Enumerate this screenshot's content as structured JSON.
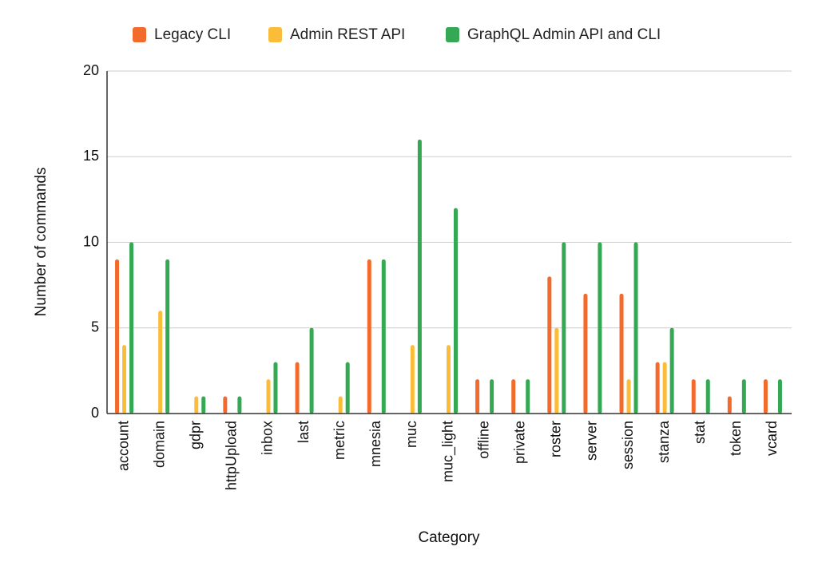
{
  "chart_data": {
    "type": "bar",
    "title": "",
    "xlabel": "Category",
    "ylabel": "Number of commands",
    "ylim": [
      0,
      20
    ],
    "yticks": [
      0,
      5,
      10,
      15,
      20
    ],
    "grid": true,
    "legend_position": "top",
    "categories": [
      "account",
      "domain",
      "gdpr",
      "httpUpload",
      "inbox",
      "last",
      "metric",
      "mnesia",
      "muc",
      "muc_light",
      "offline",
      "private",
      "roster",
      "server",
      "session",
      "stanza",
      "stat",
      "token",
      "vcard"
    ],
    "series": [
      {
        "name": "Legacy CLI",
        "color": "#f26b2c",
        "values": [
          9,
          0,
          0,
          1,
          0,
          3,
          0,
          9,
          0,
          0,
          2,
          2,
          8,
          7,
          7,
          3,
          2,
          1,
          2
        ]
      },
      {
        "name": "Admin REST API",
        "color": "#fbbc3a",
        "values": [
          4,
          6,
          1,
          0,
          2,
          0,
          1,
          0,
          4,
          4,
          0,
          0,
          5,
          0,
          2,
          3,
          0,
          0,
          0
        ]
      },
      {
        "name": "GraphQL Admin API and CLI",
        "color": "#34a853",
        "values": [
          10,
          9,
          1,
          1,
          3,
          5,
          3,
          9,
          16,
          12,
          2,
          2,
          10,
          10,
          10,
          5,
          2,
          2,
          2
        ]
      }
    ]
  }
}
